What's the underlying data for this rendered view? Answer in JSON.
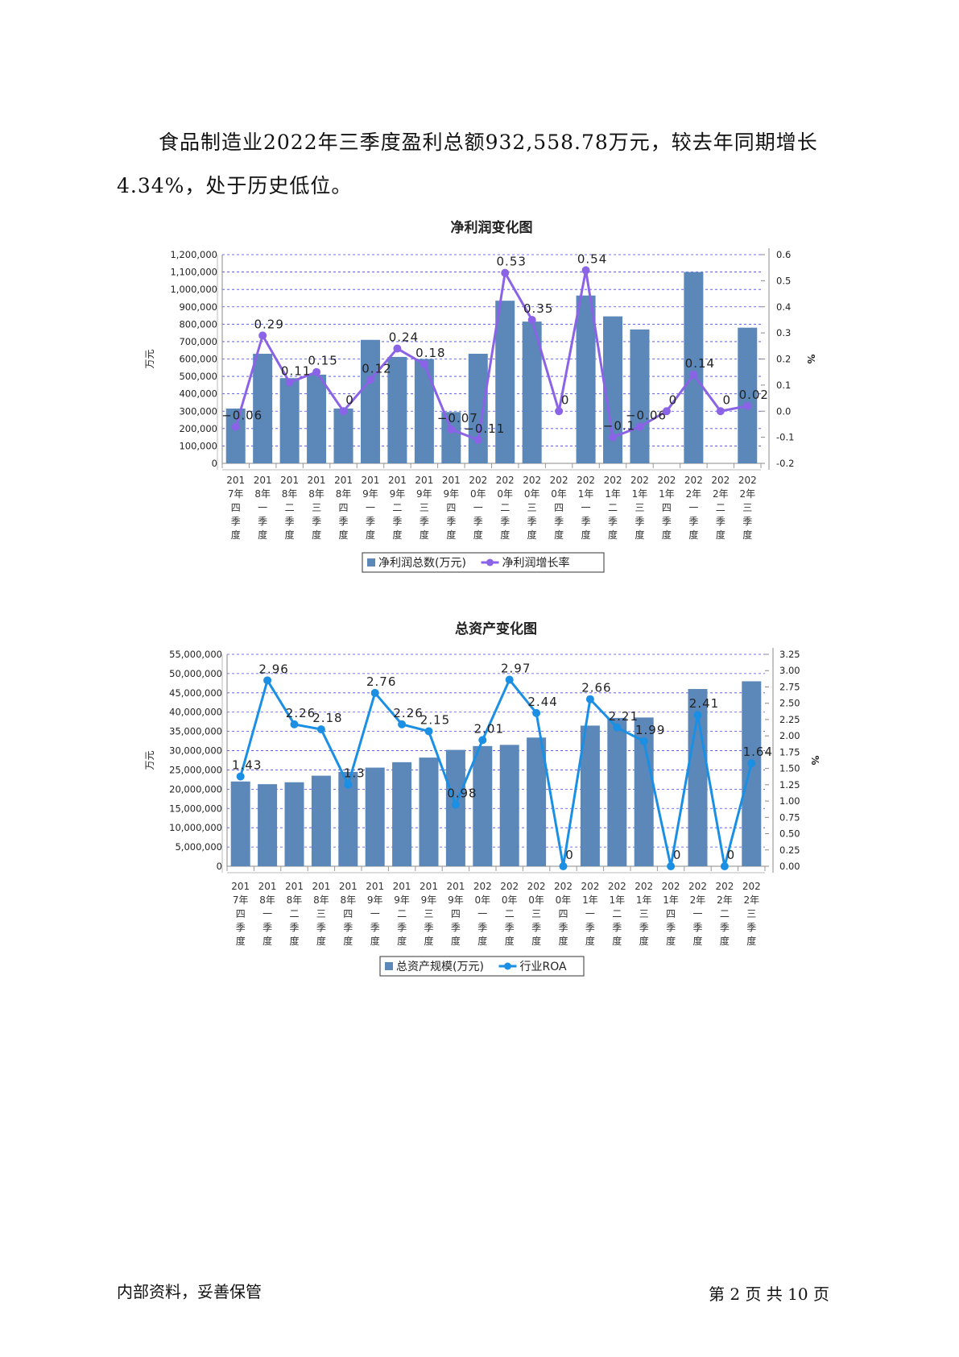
{
  "paragraph": "食品制造业2022年三季度盈利总额932,558.78万元，较去年同期增长4.34%，处于历史低位。",
  "footer": {
    "left": "内部资料，妥善保管",
    "right": "第 2 页   共 10 页"
  },
  "chart_data": [
    {
      "type": "bar",
      "title": "净利润变化图",
      "ylabel": "万元",
      "y2label": "%",
      "ylim": [
        0,
        1200000
      ],
      "y2lim": [
        -0.2,
        0.6
      ],
      "yticks": [
        "0",
        "100,000",
        "200,000",
        "300,000",
        "400,000",
        "500,000",
        "600,000",
        "700,000",
        "800,000",
        "900,000",
        "1,000,000",
        "1,100,000",
        "1,200,000"
      ],
      "y2ticks": [
        "-0.2",
        "-0.1",
        "0.0",
        "0.1",
        "0.2",
        "0.3",
        "0.4",
        "0.5",
        "0.6"
      ],
      "categories": [
        [
          "201",
          "7年",
          "四",
          "季",
          "度"
        ],
        [
          "201",
          "8年",
          "一",
          "季",
          "度"
        ],
        [
          "201",
          "8年",
          "二",
          "季",
          "度"
        ],
        [
          "201",
          "8年",
          "三",
          "季",
          "度"
        ],
        [
          "201",
          "8年",
          "四",
          "季",
          "度"
        ],
        [
          "201",
          "9年",
          "一",
          "季",
          "度"
        ],
        [
          "201",
          "9年",
          "二",
          "季",
          "度"
        ],
        [
          "201",
          "9年",
          "三",
          "季",
          "度"
        ],
        [
          "201",
          "9年",
          "四",
          "季",
          "度"
        ],
        [
          "202",
          "0年",
          "一",
          "季",
          "度"
        ],
        [
          "202",
          "0年",
          "二",
          "季",
          "度"
        ],
        [
          "202",
          "0年",
          "三",
          "季",
          "度"
        ],
        [
          "202",
          "0年",
          "四",
          "季",
          "度"
        ],
        [
          "202",
          "1年",
          "一",
          "季",
          "度"
        ],
        [
          "202",
          "1年",
          "二",
          "季",
          "度"
        ],
        [
          "202",
          "1年",
          "三",
          "季",
          "度"
        ],
        [
          "202",
          "1年",
          "四",
          "季",
          "度"
        ],
        [
          "202",
          "2年",
          "一",
          "季",
          "度"
        ],
        [
          "202",
          "2年",
          "二",
          "季",
          "度"
        ],
        [
          "202",
          "2年",
          "三",
          "季",
          "度"
        ]
      ],
      "series": [
        {
          "name": "净利润总数(万元)",
          "kind": "bar",
          "color": "#5b87b9",
          "values": [
            315000,
            630000,
            490000,
            510000,
            315000,
            710000,
            612000,
            600000,
            295000,
            630000,
            935000,
            815000,
            0,
            965000,
            845000,
            770000,
            0,
            1100000,
            0,
            780000
          ]
        },
        {
          "name": "净利润增长率",
          "kind": "line",
          "color": "#8b63e6",
          "values": [
            -0.06,
            0.29,
            0.11,
            0.15,
            0,
            0.12,
            0.24,
            0.18,
            -0.07,
            -0.11,
            0.53,
            0.35,
            0,
            0.54,
            -0.1,
            -0.06,
            0,
            0.14,
            0,
            0.02
          ],
          "labels": [
            "−0.06",
            "0.29",
            "0.11",
            "0.15",
            "0",
            "0.12",
            "0.24",
            "0.18",
            "−0.07",
            "−0.11",
            "0.53",
            "0.35",
            "0",
            "0.54",
            "−0.1",
            "−0.06",
            "0",
            "0.14",
            "0",
            "0.02"
          ]
        }
      ]
    },
    {
      "type": "bar",
      "title": "总资产变化图",
      "ylabel": "万元",
      "y2label": "%",
      "ylim": [
        0,
        55000000
      ],
      "y2lim": [
        0,
        3.375
      ],
      "yticks": [
        "0",
        "5,000,000",
        "10,000,000",
        "15,000,000",
        "20,000,000",
        "25,000,000",
        "30,000,000",
        "35,000,000",
        "40,000,000",
        "45,000,000",
        "50,000,000",
        "55,000,000"
      ],
      "y2ticks": [
        "0.00",
        "0.25",
        "0.50",
        "0.75",
        "1.00",
        "1.25",
        "1.50",
        "1.75",
        "2.00",
        "2.25",
        "2.50",
        "2.75",
        "3.00",
        "3.25"
      ],
      "categories": [
        [
          "201",
          "7年",
          "四",
          "季",
          "度"
        ],
        [
          "201",
          "8年",
          "一",
          "季",
          "度"
        ],
        [
          "201",
          "8年",
          "二",
          "季",
          "度"
        ],
        [
          "201",
          "8年",
          "三",
          "季",
          "度"
        ],
        [
          "201",
          "8年",
          "四",
          "季",
          "度"
        ],
        [
          "201",
          "9年",
          "一",
          "季",
          "度"
        ],
        [
          "201",
          "9年",
          "二",
          "季",
          "度"
        ],
        [
          "201",
          "9年",
          "三",
          "季",
          "度"
        ],
        [
          "201",
          "9年",
          "四",
          "季",
          "度"
        ],
        [
          "202",
          "0年",
          "一",
          "季",
          "度"
        ],
        [
          "202",
          "0年",
          "二",
          "季",
          "度"
        ],
        [
          "202",
          "0年",
          "三",
          "季",
          "度"
        ],
        [
          "202",
          "0年",
          "四",
          "季",
          "度"
        ],
        [
          "202",
          "1年",
          "一",
          "季",
          "度"
        ],
        [
          "202",
          "1年",
          "二",
          "季",
          "度"
        ],
        [
          "202",
          "1年",
          "三",
          "季",
          "度"
        ],
        [
          "202",
          "1年",
          "四",
          "季",
          "度"
        ],
        [
          "202",
          "2年",
          "一",
          "季",
          "度"
        ],
        [
          "202",
          "2年",
          "二",
          "季",
          "度"
        ],
        [
          "202",
          "2年",
          "三",
          "季",
          "度"
        ]
      ],
      "series": [
        {
          "name": "总资产规模(万元)",
          "kind": "bar",
          "color": "#5b87b9",
          "values": [
            22000000,
            21300000,
            21800000,
            23500000,
            24500000,
            25600000,
            27000000,
            28200000,
            30200000,
            31200000,
            31500000,
            33400000,
            0,
            36500000,
            38500000,
            38600000,
            0,
            46000000,
            0,
            48000000
          ]
        },
        {
          "name": "行业ROA",
          "kind": "line",
          "color": "#1a8fe3",
          "values": [
            1.43,
            2.96,
            2.26,
            2.18,
            1.3,
            2.76,
            2.26,
            2.15,
            0.98,
            2.01,
            2.97,
            2.44,
            0,
            2.66,
            2.21,
            1.99,
            0,
            2.41,
            0,
            1.64
          ],
          "labels": [
            "1.43",
            "2.96",
            "2.26",
            "2.18",
            "1.3",
            "2.76",
            "2.26",
            "2.15",
            "0.98",
            "2.01",
            "2.97",
            "2.44",
            "0",
            "2.66",
            "2.21",
            "1.99",
            "0",
            "2.41",
            "0",
            "1.64"
          ]
        }
      ]
    }
  ]
}
